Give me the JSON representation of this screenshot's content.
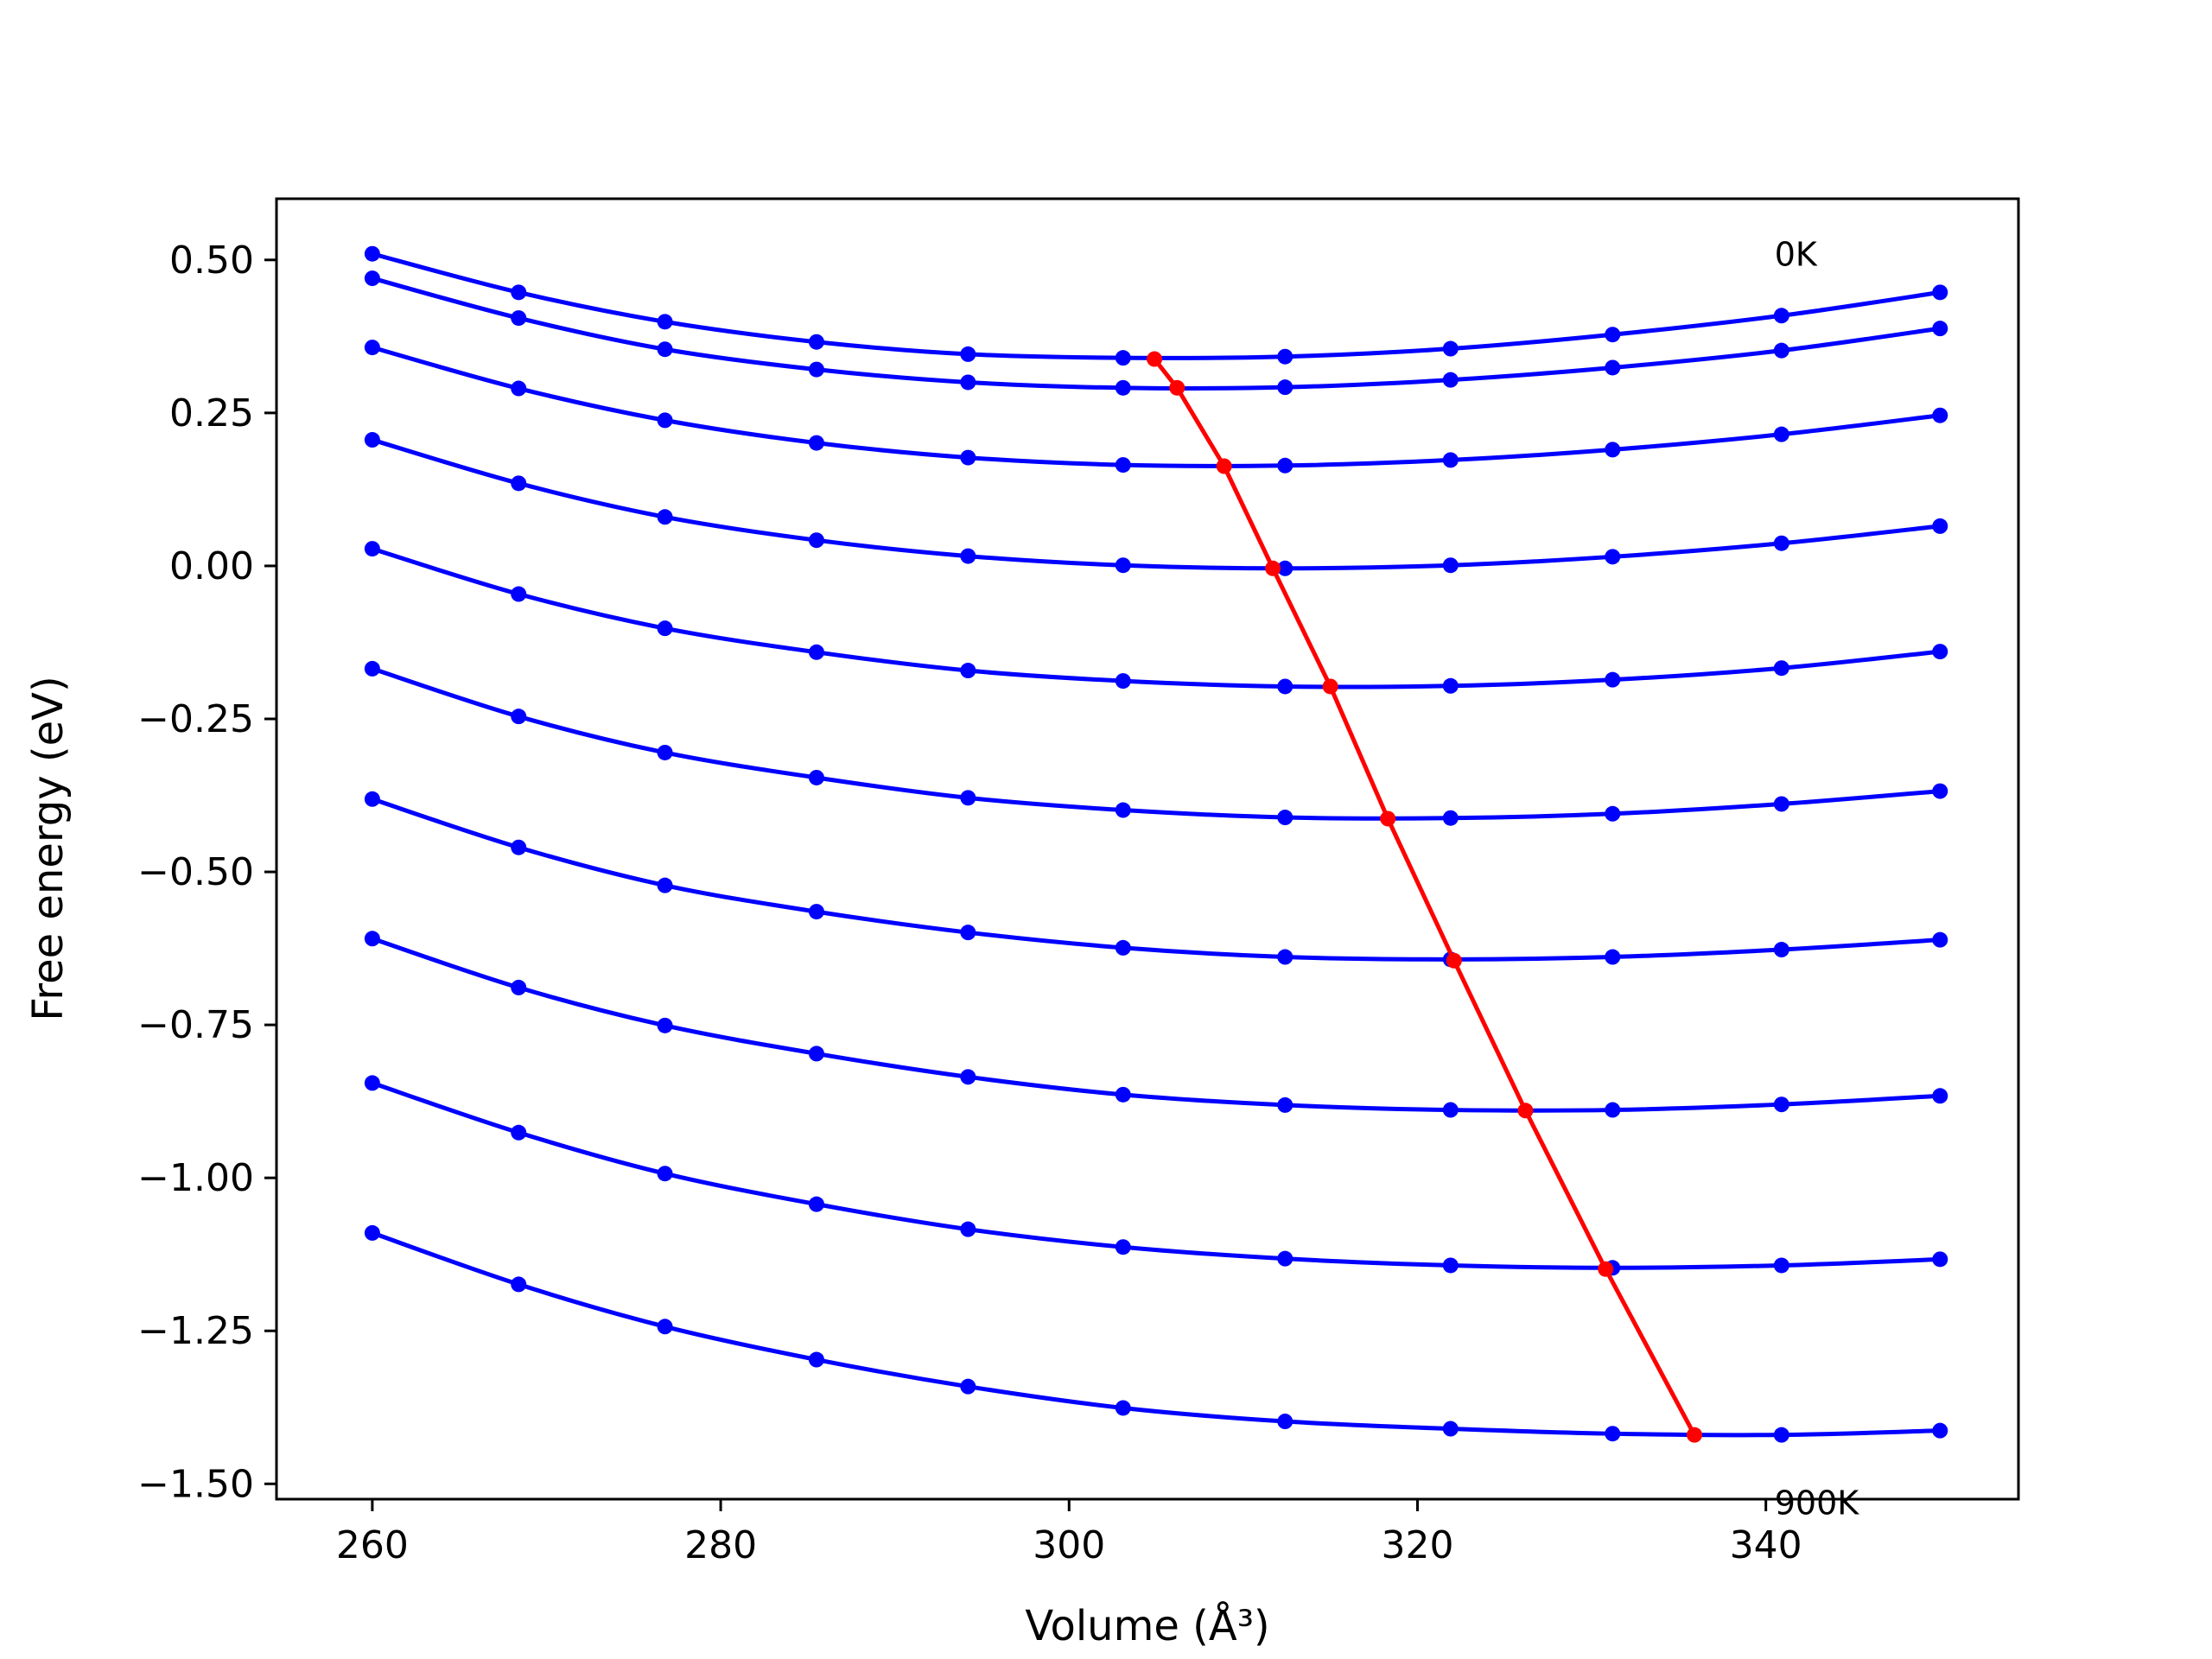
{
  "chart_data": {
    "type": "line",
    "title": "",
    "xlabel": "Volume (Å³)",
    "ylabel": "Free energy (eV)",
    "xlim": [
      254.5,
      354.5
    ],
    "ylim": [
      -1.525,
      0.6
    ],
    "x_ticks": [
      260,
      280,
      300,
      320,
      340
    ],
    "x_tick_labels": [
      "260",
      "280",
      "300",
      "320",
      "340"
    ],
    "y_ticks": [
      0.5,
      0.25,
      0.0,
      -0.25,
      -0.5,
      -0.75,
      -1.0,
      -1.25,
      -1.5
    ],
    "y_tick_labels": [
      "0.50",
      "0.25",
      "0.00",
      "−0.25",
      "−0.50",
      "−0.75",
      "−1.00",
      "−1.25",
      "−1.50"
    ],
    "grid": false,
    "x": [
      260.0,
      268.4,
      276.8,
      285.5,
      294.2,
      303.1,
      312.4,
      321.9,
      331.2,
      340.9,
      350.0
    ],
    "series": [
      {
        "color": "#0000ff",
        "values": [
          0.51,
          0.447,
          0.399,
          0.366,
          0.346,
          0.34,
          0.342,
          0.355,
          0.378,
          0.409,
          0.447
        ]
      },
      {
        "color": "#0000ff",
        "values": [
          0.47,
          0.405,
          0.354,
          0.321,
          0.3,
          0.291,
          0.292,
          0.304,
          0.324,
          0.352,
          0.388
        ]
      },
      {
        "color": "#0000ff",
        "values": [
          0.357,
          0.29,
          0.238,
          0.201,
          0.177,
          0.165,
          0.164,
          0.173,
          0.19,
          0.215,
          0.246
        ]
      },
      {
        "color": "#0000ff",
        "values": [
          0.206,
          0.135,
          0.08,
          0.042,
          0.016,
          0.001,
          -0.004,
          0.001,
          0.015,
          0.037,
          0.065
        ]
      },
      {
        "color": "#0000ff",
        "values": [
          0.028,
          -0.046,
          -0.102,
          -0.141,
          -0.171,
          -0.188,
          -0.197,
          -0.196,
          -0.186,
          -0.167,
          -0.14
        ]
      },
      {
        "color": "#0000ff",
        "values": [
          -0.168,
          -0.246,
          -0.305,
          -0.346,
          -0.379,
          -0.399,
          -0.411,
          -0.412,
          -0.405,
          -0.389,
          -0.368
        ]
      },
      {
        "color": "#0000ff",
        "values": [
          -0.381,
          -0.46,
          -0.522,
          -0.565,
          -0.599,
          -0.624,
          -0.639,
          -0.643,
          -0.639,
          -0.627,
          -0.611
        ]
      },
      {
        "color": "#0000ff",
        "values": [
          -0.609,
          -0.689,
          -0.751,
          -0.797,
          -0.835,
          -0.864,
          -0.881,
          -0.889,
          -0.889,
          -0.88,
          -0.866
        ]
      },
      {
        "color": "#0000ff",
        "values": [
          -0.845,
          -0.926,
          -0.993,
          -1.043,
          -1.084,
          -1.113,
          -1.132,
          -1.143,
          -1.147,
          -1.143,
          -1.133
        ]
      },
      {
        "color": "#0000ff",
        "values": [
          -1.09,
          -1.174,
          -1.243,
          -1.297,
          -1.341,
          -1.376,
          -1.398,
          -1.41,
          -1.418,
          -1.42,
          -1.413
        ]
      }
    ],
    "minima": {
      "color": "#ff0000",
      "x": [
        304.9,
        306.2,
        308.9,
        311.7,
        315.0,
        318.3,
        322.1,
        326.2,
        330.8,
        335.9
      ],
      "y": [
        0.338,
        0.291,
        0.163,
        -0.004,
        -0.197,
        -0.413,
        -0.645,
        -0.89,
        -1.149,
        -1.42
      ]
    },
    "annotations": [
      {
        "text": "0K",
        "x": 340.5,
        "y": 0.51
      },
      {
        "text": "900K",
        "x": 340.5,
        "y": -1.53
      }
    ]
  }
}
